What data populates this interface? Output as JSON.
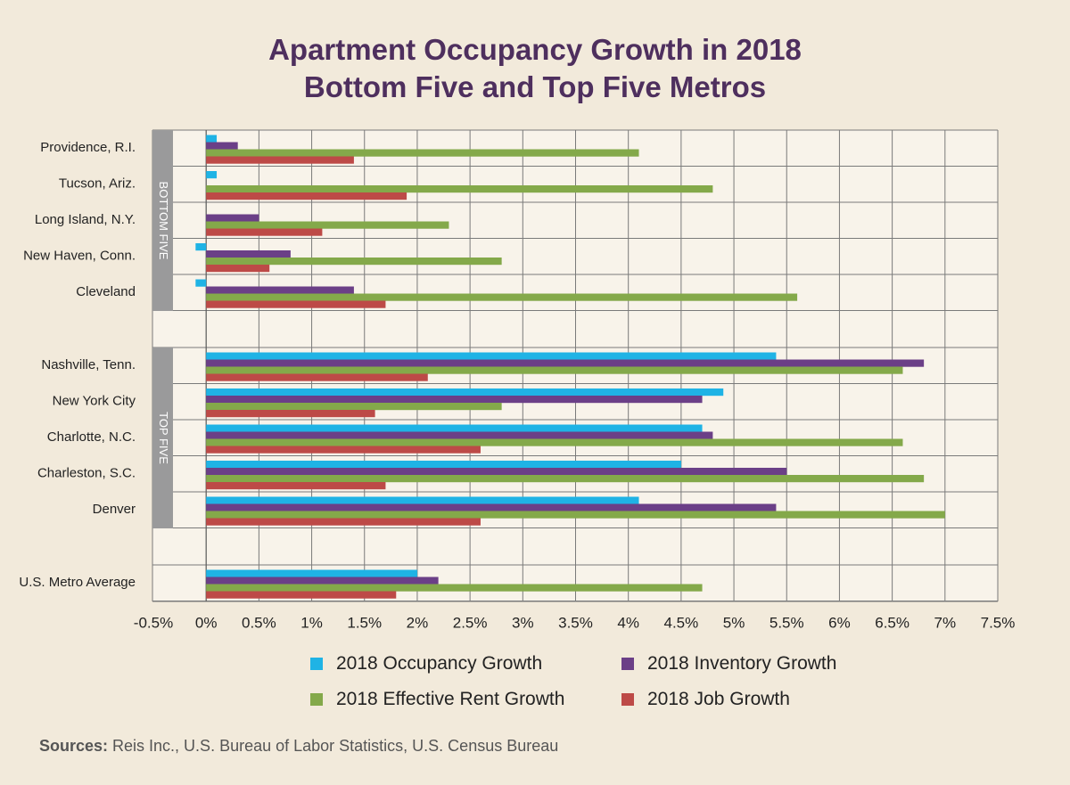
{
  "chart_data": {
    "type": "bar",
    "orientation": "horizontal",
    "title": "Apartment Occupancy Growth in 2018",
    "subtitle": "Bottom Five and Top Five Metros",
    "groups": [
      {
        "label": "BOTTOM FIVE",
        "categories": [
          "Providence, R.I.",
          "Tucson, Ariz.",
          "Long Island, N.Y.",
          "New Haven, Conn.",
          "Cleveland"
        ]
      },
      {
        "label": "TOP FIVE",
        "categories": [
          "Nashville, Tenn.",
          "New York City",
          "Charlotte, N.C.",
          "Charleston, S.C.",
          "Denver"
        ]
      },
      {
        "label": "",
        "categories": [
          "U.S. Metro Average"
        ]
      }
    ],
    "categories": [
      "Providence, R.I.",
      "Tucson, Ariz.",
      "Long Island, N.Y.",
      "New Haven, Conn.",
      "Cleveland",
      "Nashville, Tenn.",
      "New York City",
      "Charlotte, N.C.",
      "Charleston, S.C.",
      "Denver",
      "U.S. Metro Average"
    ],
    "series": [
      {
        "name": "2018 Occupancy Growth",
        "color": "#1fb3e5",
        "values": [
          0.1,
          0.1,
          0.0,
          -0.1,
          -0.1,
          5.4,
          4.9,
          4.7,
          4.5,
          4.1,
          2.0
        ]
      },
      {
        "name": "2018 Inventory Growth",
        "color": "#6b3f87",
        "values": [
          0.3,
          0.0,
          0.5,
          0.8,
          1.4,
          6.8,
          4.7,
          4.8,
          5.5,
          5.4,
          2.2
        ]
      },
      {
        "name": "2018 Effective Rent Growth",
        "color": "#84a94a",
        "values": [
          4.1,
          4.8,
          2.3,
          2.8,
          5.6,
          6.6,
          2.8,
          6.6,
          6.8,
          7.0,
          4.7
        ]
      },
      {
        "name": "2018 Job Growth",
        "color": "#bd4a47",
        "values": [
          1.4,
          1.9,
          1.1,
          0.6,
          1.7,
          2.1,
          1.6,
          2.6,
          1.7,
          2.6,
          1.8
        ]
      }
    ],
    "xlim": [
      -0.5,
      7.5
    ],
    "xticks": [
      -0.5,
      0,
      0.5,
      1,
      1.5,
      2,
      2.5,
      3,
      3.5,
      4,
      4.5,
      5,
      5.5,
      6,
      6.5,
      7,
      7.5
    ],
    "xtick_labels": [
      "-0.5%",
      "0%",
      "0.5%",
      "1%",
      "1.5%",
      "2%",
      "2.5%",
      "3%",
      "3.5%",
      "4%",
      "4.5%",
      "5%",
      "5.5%",
      "6%",
      "6.5%",
      "7%",
      "7.5%"
    ],
    "xlabel": "",
    "ylabel": "",
    "grid": true,
    "legend_position": "bottom"
  },
  "legend": [
    {
      "label": "2018 Occupancy Growth",
      "color": "#1fb3e5"
    },
    {
      "label": "2018 Inventory Growth",
      "color": "#6b3f87"
    },
    {
      "label": "2018 Effective Rent Growth",
      "color": "#84a94a"
    },
    {
      "label": "2018 Job Growth",
      "color": "#bd4a47"
    }
  ],
  "sources": {
    "label": "Sources:",
    "text": " Reis Inc., U.S. Bureau of Labor Statistics, U.S. Census Bureau"
  }
}
